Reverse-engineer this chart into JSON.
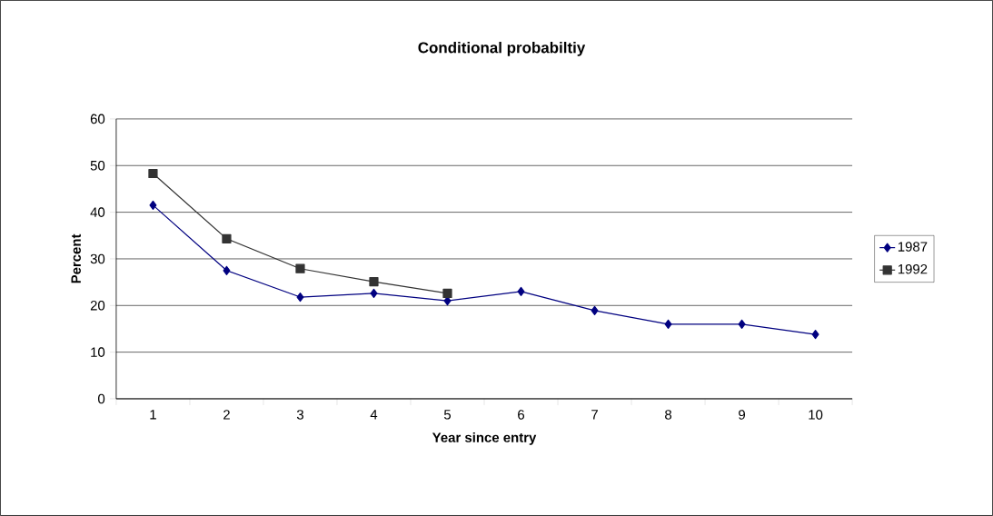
{
  "chart_data": {
    "type": "line",
    "title": "Conditional probabiltiy",
    "xlabel": "Year since entry",
    "ylabel": "Percent",
    "categories": [
      "1",
      "2",
      "3",
      "4",
      "5",
      "6",
      "7",
      "8",
      "9",
      "10"
    ],
    "series": [
      {
        "name": "1987",
        "color": "#000080",
        "marker": "diamond",
        "values": [
          41.5,
          27.5,
          21.8,
          22.6,
          21,
          23,
          18.9,
          16,
          16,
          13.8
        ]
      },
      {
        "name": "1992",
        "color": "#333333",
        "marker": "square",
        "values": [
          48.3,
          34.3,
          27.9,
          25.1,
          22.6,
          null,
          null,
          null,
          null,
          null
        ]
      }
    ],
    "ylim": [
      0,
      60
    ],
    "yticks": [
      0,
      10,
      20,
      30,
      40,
      50,
      60
    ],
    "grid": "y",
    "legend": "right",
    "line_style": "solid"
  }
}
